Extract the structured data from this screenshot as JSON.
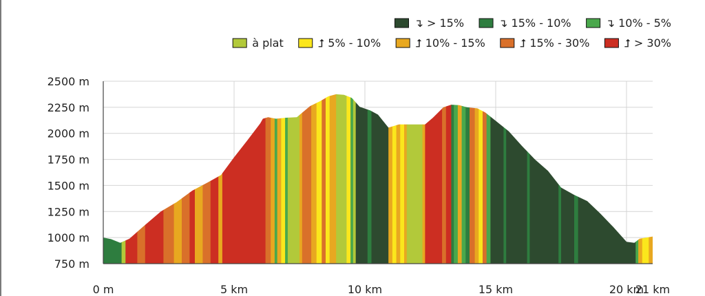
{
  "chart_data": {
    "type": "area",
    "title": "",
    "xlabel": "",
    "ylabel": "",
    "xlim": [
      0,
      21
    ],
    "ylim": [
      750,
      2500
    ],
    "x_ticks": [
      0,
      5,
      10,
      15,
      20,
      21
    ],
    "x_tick_labels": [
      "0 m",
      "5 km",
      "10 km",
      "15 km",
      "20 km",
      "21 km"
    ],
    "y_ticks": [
      750,
      1000,
      1250,
      1500,
      1750,
      2000,
      2250,
      2500
    ],
    "y_tick_labels": [
      "750 m",
      "1000 m",
      "1250 m",
      "1500 m",
      "1750 m",
      "2000 m",
      "2250 m",
      "2500 m"
    ],
    "grid": true,
    "legend_position": "top-right",
    "legend": [
      {
        "key": "d15",
        "label": "↴ > 15%",
        "color": "#2d4a2f"
      },
      {
        "key": "d10",
        "label": "↴ 15% - 10%",
        "color": "#2e7d3f"
      },
      {
        "key": "d5",
        "label": "↴ 10% - 5%",
        "color": "#4aa84c"
      },
      {
        "key": "flat",
        "label": "à plat",
        "color": "#b2c93a"
      },
      {
        "key": "u5",
        "label": "⮥ 5% - 10%",
        "color": "#fbe71c"
      },
      {
        "key": "u10",
        "label": "⮥ 10% - 15%",
        "color": "#e8a820"
      },
      {
        "key": "u15",
        "label": "⮥ 15% - 30%",
        "color": "#d9702a"
      },
      {
        "key": "u30",
        "label": "⮥ > 30%",
        "color": "#cc2e22"
      }
    ],
    "profile": {
      "x": [
        0,
        0.3,
        0.65,
        1.0,
        1.5,
        2.2,
        2.8,
        3.4,
        4.0,
        4.5,
        5.0,
        5.5,
        6.0,
        6.1,
        6.3,
        6.6,
        7.0,
        7.4,
        7.9,
        8.3,
        8.6,
        8.9,
        9.2,
        9.5,
        9.8,
        10.2,
        10.5,
        10.9,
        11.3,
        11.8,
        12.3,
        12.6,
        13.0,
        13.3,
        13.6,
        13.9,
        14.3,
        14.6,
        15.0,
        15.5,
        16.0,
        16.5,
        17.0,
        17.5,
        18.0,
        18.5,
        19.0,
        19.5,
        20.0,
        20.3,
        20.5,
        21.0
      ],
      "y": [
        1000,
        985,
        950,
        990,
        1100,
        1250,
        1340,
        1450,
        1530,
        1600,
        1770,
        1930,
        2095,
        2140,
        2155,
        2140,
        2150,
        2155,
        2260,
        2310,
        2355,
        2375,
        2370,
        2340,
        2255,
        2220,
        2180,
        2055,
        2085,
        2085,
        2085,
        2150,
        2250,
        2275,
        2270,
        2250,
        2240,
        2200,
        2120,
        2020,
        1880,
        1750,
        1640,
        1480,
        1410,
        1350,
        1230,
        1100,
        960,
        950,
        990,
        1010
      ]
    },
    "slope_segments": [
      [
        0.0,
        0.7,
        "d10"
      ],
      [
        0.7,
        0.85,
        "flat"
      ],
      [
        0.85,
        1.3,
        "u30"
      ],
      [
        1.3,
        1.6,
        "u15"
      ],
      [
        1.6,
        2.3,
        "u30"
      ],
      [
        2.3,
        2.7,
        "u15"
      ],
      [
        2.7,
        3.0,
        "u10"
      ],
      [
        3.0,
        3.3,
        "u15"
      ],
      [
        3.3,
        3.5,
        "u30"
      ],
      [
        3.5,
        3.8,
        "u10"
      ],
      [
        3.8,
        4.1,
        "u15"
      ],
      [
        4.1,
        4.4,
        "u30"
      ],
      [
        4.4,
        4.55,
        "u10"
      ],
      [
        4.55,
        6.2,
        "u30"
      ],
      [
        6.2,
        6.4,
        "u15"
      ],
      [
        6.4,
        6.55,
        "u10"
      ],
      [
        6.55,
        6.65,
        "d5"
      ],
      [
        6.65,
        6.8,
        "u10"
      ],
      [
        6.8,
        6.95,
        "u5"
      ],
      [
        6.95,
        7.05,
        "d5"
      ],
      [
        7.05,
        7.5,
        "flat"
      ],
      [
        7.5,
        7.6,
        "u10"
      ],
      [
        7.6,
        7.95,
        "u15"
      ],
      [
        7.95,
        8.15,
        "u10"
      ],
      [
        8.15,
        8.35,
        "u5"
      ],
      [
        8.35,
        8.5,
        "u15"
      ],
      [
        8.5,
        8.65,
        "u5"
      ],
      [
        8.65,
        8.9,
        "u10"
      ],
      [
        8.9,
        9.3,
        "flat"
      ],
      [
        9.3,
        9.45,
        "u5"
      ],
      [
        9.45,
        9.55,
        "d5"
      ],
      [
        9.55,
        9.65,
        "flat"
      ],
      [
        9.65,
        10.1,
        "d15"
      ],
      [
        10.1,
        10.25,
        "d10"
      ],
      [
        10.25,
        10.9,
        "d15"
      ],
      [
        10.9,
        11.05,
        "u10"
      ],
      [
        11.05,
        11.2,
        "u5"
      ],
      [
        11.2,
        11.35,
        "u10"
      ],
      [
        11.35,
        11.5,
        "u5"
      ],
      [
        11.5,
        11.6,
        "u10"
      ],
      [
        11.6,
        12.2,
        "flat"
      ],
      [
        12.2,
        12.3,
        "u10"
      ],
      [
        12.3,
        12.95,
        "u30"
      ],
      [
        12.95,
        13.1,
        "u15"
      ],
      [
        13.1,
        13.3,
        "u30"
      ],
      [
        13.3,
        13.4,
        "d10"
      ],
      [
        13.4,
        13.55,
        "d5"
      ],
      [
        13.55,
        13.7,
        "u10"
      ],
      [
        13.7,
        13.85,
        "d5"
      ],
      [
        13.85,
        14.0,
        "d10"
      ],
      [
        14.0,
        14.2,
        "u15"
      ],
      [
        14.2,
        14.35,
        "u10"
      ],
      [
        14.35,
        14.5,
        "u5"
      ],
      [
        14.5,
        14.65,
        "u15"
      ],
      [
        14.65,
        14.8,
        "d5"
      ],
      [
        14.8,
        15.3,
        "d15"
      ],
      [
        15.3,
        15.4,
        "d10"
      ],
      [
        15.4,
        16.2,
        "d15"
      ],
      [
        16.2,
        16.3,
        "d10"
      ],
      [
        16.3,
        17.4,
        "d15"
      ],
      [
        17.4,
        17.5,
        "d10"
      ],
      [
        17.5,
        18.0,
        "d15"
      ],
      [
        18.0,
        18.15,
        "d10"
      ],
      [
        18.15,
        20.35,
        "d15"
      ],
      [
        20.35,
        20.45,
        "d5"
      ],
      [
        20.45,
        20.6,
        "u10"
      ],
      [
        20.6,
        20.85,
        "u5"
      ],
      [
        20.85,
        21.0,
        "u10"
      ]
    ]
  }
}
